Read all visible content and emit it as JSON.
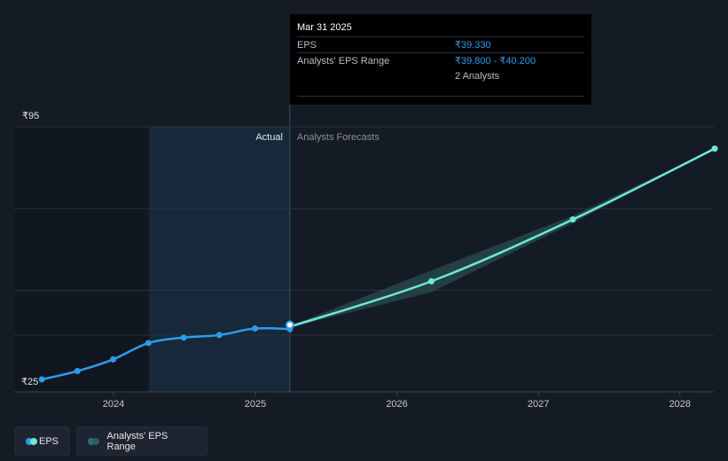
{
  "tooltip": {
    "date": "Mar 31 2025",
    "eps_label": "EPS",
    "eps_value": "₹39.330",
    "range_label": "Analysts' EPS Range",
    "range_value": "₹39.800 - ₹40.200",
    "analysts": "2 Analysts"
  },
  "regions": {
    "actual": "Actual",
    "forecast": "Analysts Forecasts"
  },
  "legend": {
    "eps": "EPS",
    "range": "Analysts' EPS Range"
  },
  "colors": {
    "background": "#151b24",
    "eps_line": "#2d9cec",
    "forecast_line": "#6ee8d8",
    "range_band": "#2f5f5c",
    "actual_highlight": "#16283a"
  },
  "chart_data": {
    "type": "line",
    "y_tick_labels": [
      "₹95",
      "₹25"
    ],
    "ylim": [
      25,
      95
    ],
    "x_tick_labels": [
      "2024",
      "2025",
      "2026",
      "2027",
      "2028"
    ],
    "grid": true,
    "legend_position": "bottom-left",
    "series": [
      {
        "name": "EPS",
        "points": [
          {
            "x": "2023-06-30",
            "y": 25.5
          },
          {
            "x": "2023-09-30",
            "y": 27.8
          },
          {
            "x": "2023-12-31",
            "y": 31.0
          },
          {
            "x": "2024-03-31",
            "y": 35.5
          },
          {
            "x": "2024-06-30",
            "y": 37.0
          },
          {
            "x": "2024-09-30",
            "y": 37.7
          },
          {
            "x": "2024-12-31",
            "y": 39.5
          },
          {
            "x": "2025-03-31",
            "y": 39.33
          }
        ]
      },
      {
        "name": "Analysts' EPS Range",
        "mid": [
          {
            "x": "2025-03-31",
            "y": 40.0
          },
          {
            "x": "2026-03-31",
            "y": 52.5
          },
          {
            "x": "2027-03-31",
            "y": 69.5
          },
          {
            "x": "2028-03-31",
            "y": 89.0
          }
        ],
        "range": [
          {
            "x": "2025-03-31",
            "low": 39.8,
            "high": 40.2
          },
          {
            "x": "2026-03-31",
            "low": 49.5,
            "high": 55.5
          },
          {
            "x": "2027-03-31",
            "low": 68.5,
            "high": 70.5
          },
          {
            "x": "2028-03-31",
            "low": 89.0,
            "high": 89.0
          }
        ]
      }
    ]
  }
}
